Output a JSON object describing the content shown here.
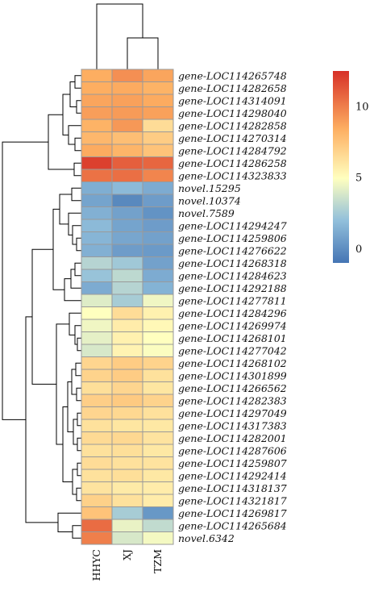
{
  "chart_data": {
    "type": "heatmap",
    "columns": [
      "HHYC",
      "XJ",
      "TZM"
    ],
    "rows": [
      "gene-LOC114265748",
      "gene-LOC114282658",
      "gene-LOC114314091",
      "gene-LOC114298040",
      "gene-LOC114282858",
      "gene-LOC114270314",
      "gene-LOC114284792",
      "gene-LOC114286258",
      "gene-LOC114323833",
      "novel.15295",
      "novel.10374",
      "novel.7589",
      "gene-LOC114294247",
      "gene-LOC114259806",
      "gene-LOC114276622",
      "gene-LOC114268318",
      "gene-LOC114284623",
      "gene-LOC114292188",
      "gene-LOC114277811",
      "gene-LOC114284296",
      "gene-LOC114269974",
      "gene-LOC114268101",
      "gene-LOC114277042",
      "gene-LOC114268102",
      "gene-LOC114301899",
      "gene-LOC114266562",
      "gene-LOC114282383",
      "gene-LOC114297049",
      "gene-LOC114317383",
      "gene-LOC114282001",
      "gene-LOC114287606",
      "gene-LOC114259807",
      "gene-LOC114292414",
      "gene-LOC114318137",
      "gene-LOC114321817",
      "gene-LOC114269817",
      "gene-LOC114265684",
      "novel.6342"
    ],
    "values": [
      [
        8.5,
        9.5,
        8.8
      ],
      [
        8.5,
        8.6,
        8.3
      ],
      [
        8.8,
        8.9,
        8.6
      ],
      [
        9.0,
        9.1,
        8.9
      ],
      [
        8.3,
        9.2,
        6.5
      ],
      [
        8.1,
        7.8,
        7.2
      ],
      [
        8.6,
        8.2,
        7.6
      ],
      [
        12.0,
        11.0,
        10.8
      ],
      [
        10.4,
        10.5,
        9.8
      ],
      [
        1.3,
        1.8,
        1.2
      ],
      [
        0.9,
        -0.2,
        0.6
      ],
      [
        1.4,
        0.8,
        0.2
      ],
      [
        1.8,
        0.9,
        0.6
      ],
      [
        1.6,
        1.0,
        0.8
      ],
      [
        1.4,
        0.6,
        0.5
      ],
      [
        3.0,
        2.4,
        0.8
      ],
      [
        2.2,
        3.2,
        1.2
      ],
      [
        1.2,
        3.0,
        1.5
      ],
      [
        4.1,
        2.6,
        4.6
      ],
      [
        5.0,
        6.5,
        5.6
      ],
      [
        4.6,
        5.8,
        5.3
      ],
      [
        4.3,
        5.6,
        5.0
      ],
      [
        3.9,
        5.5,
        4.9
      ],
      [
        6.8,
        7.2,
        6.9
      ],
      [
        6.9,
        7.2,
        6.3
      ],
      [
        6.4,
        6.8,
        6.1
      ],
      [
        7.1,
        7.3,
        6.9
      ],
      [
        6.8,
        6.7,
        6.3
      ],
      [
        6.3,
        6.1,
        6.0
      ],
      [
        6.6,
        6.7,
        6.2
      ],
      [
        6.3,
        6.4,
        6.0
      ],
      [
        6.5,
        6.3,
        6.2
      ],
      [
        6.3,
        6.4,
        6.0
      ],
      [
        6.2,
        5.9,
        5.8
      ],
      [
        7.0,
        6.3,
        5.8
      ],
      [
        7.6,
        2.6,
        0.4
      ],
      [
        10.6,
        4.4,
        3.3
      ],
      [
        10.0,
        3.9,
        4.7
      ]
    ],
    "colorbar": {
      "ticks": [
        0,
        5,
        10
      ],
      "min": -1,
      "max": 12.5,
      "colors": [
        "#4575b4",
        "#ffffbf",
        "#d73027"
      ]
    },
    "row_dendrogram": true,
    "column_dendrogram": true
  }
}
